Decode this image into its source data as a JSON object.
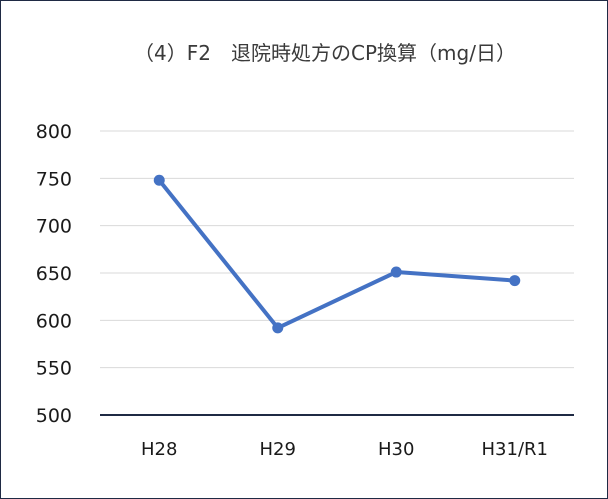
{
  "chart_data": {
    "type": "line",
    "title": "（4）F2　退院時処方のCP換算（mg/日）",
    "categories": [
      "H28",
      "H29",
      "H30",
      "H31/R1"
    ],
    "series": [
      {
        "values": [
          748,
          592,
          651,
          642
        ],
        "color": "#4472c4"
      }
    ],
    "ylim": [
      500,
      800
    ],
    "yticks": [
      500,
      550,
      600,
      650,
      700,
      750,
      800
    ],
    "ytick_labels": [
      "500",
      "550",
      "600",
      "650",
      "700",
      "750",
      "800"
    ],
    "grid": true,
    "legend": "none",
    "colors": {
      "gridline": "#d9d9d9",
      "axis": "#1f2a44",
      "frame": "#1f2a44"
    }
  }
}
